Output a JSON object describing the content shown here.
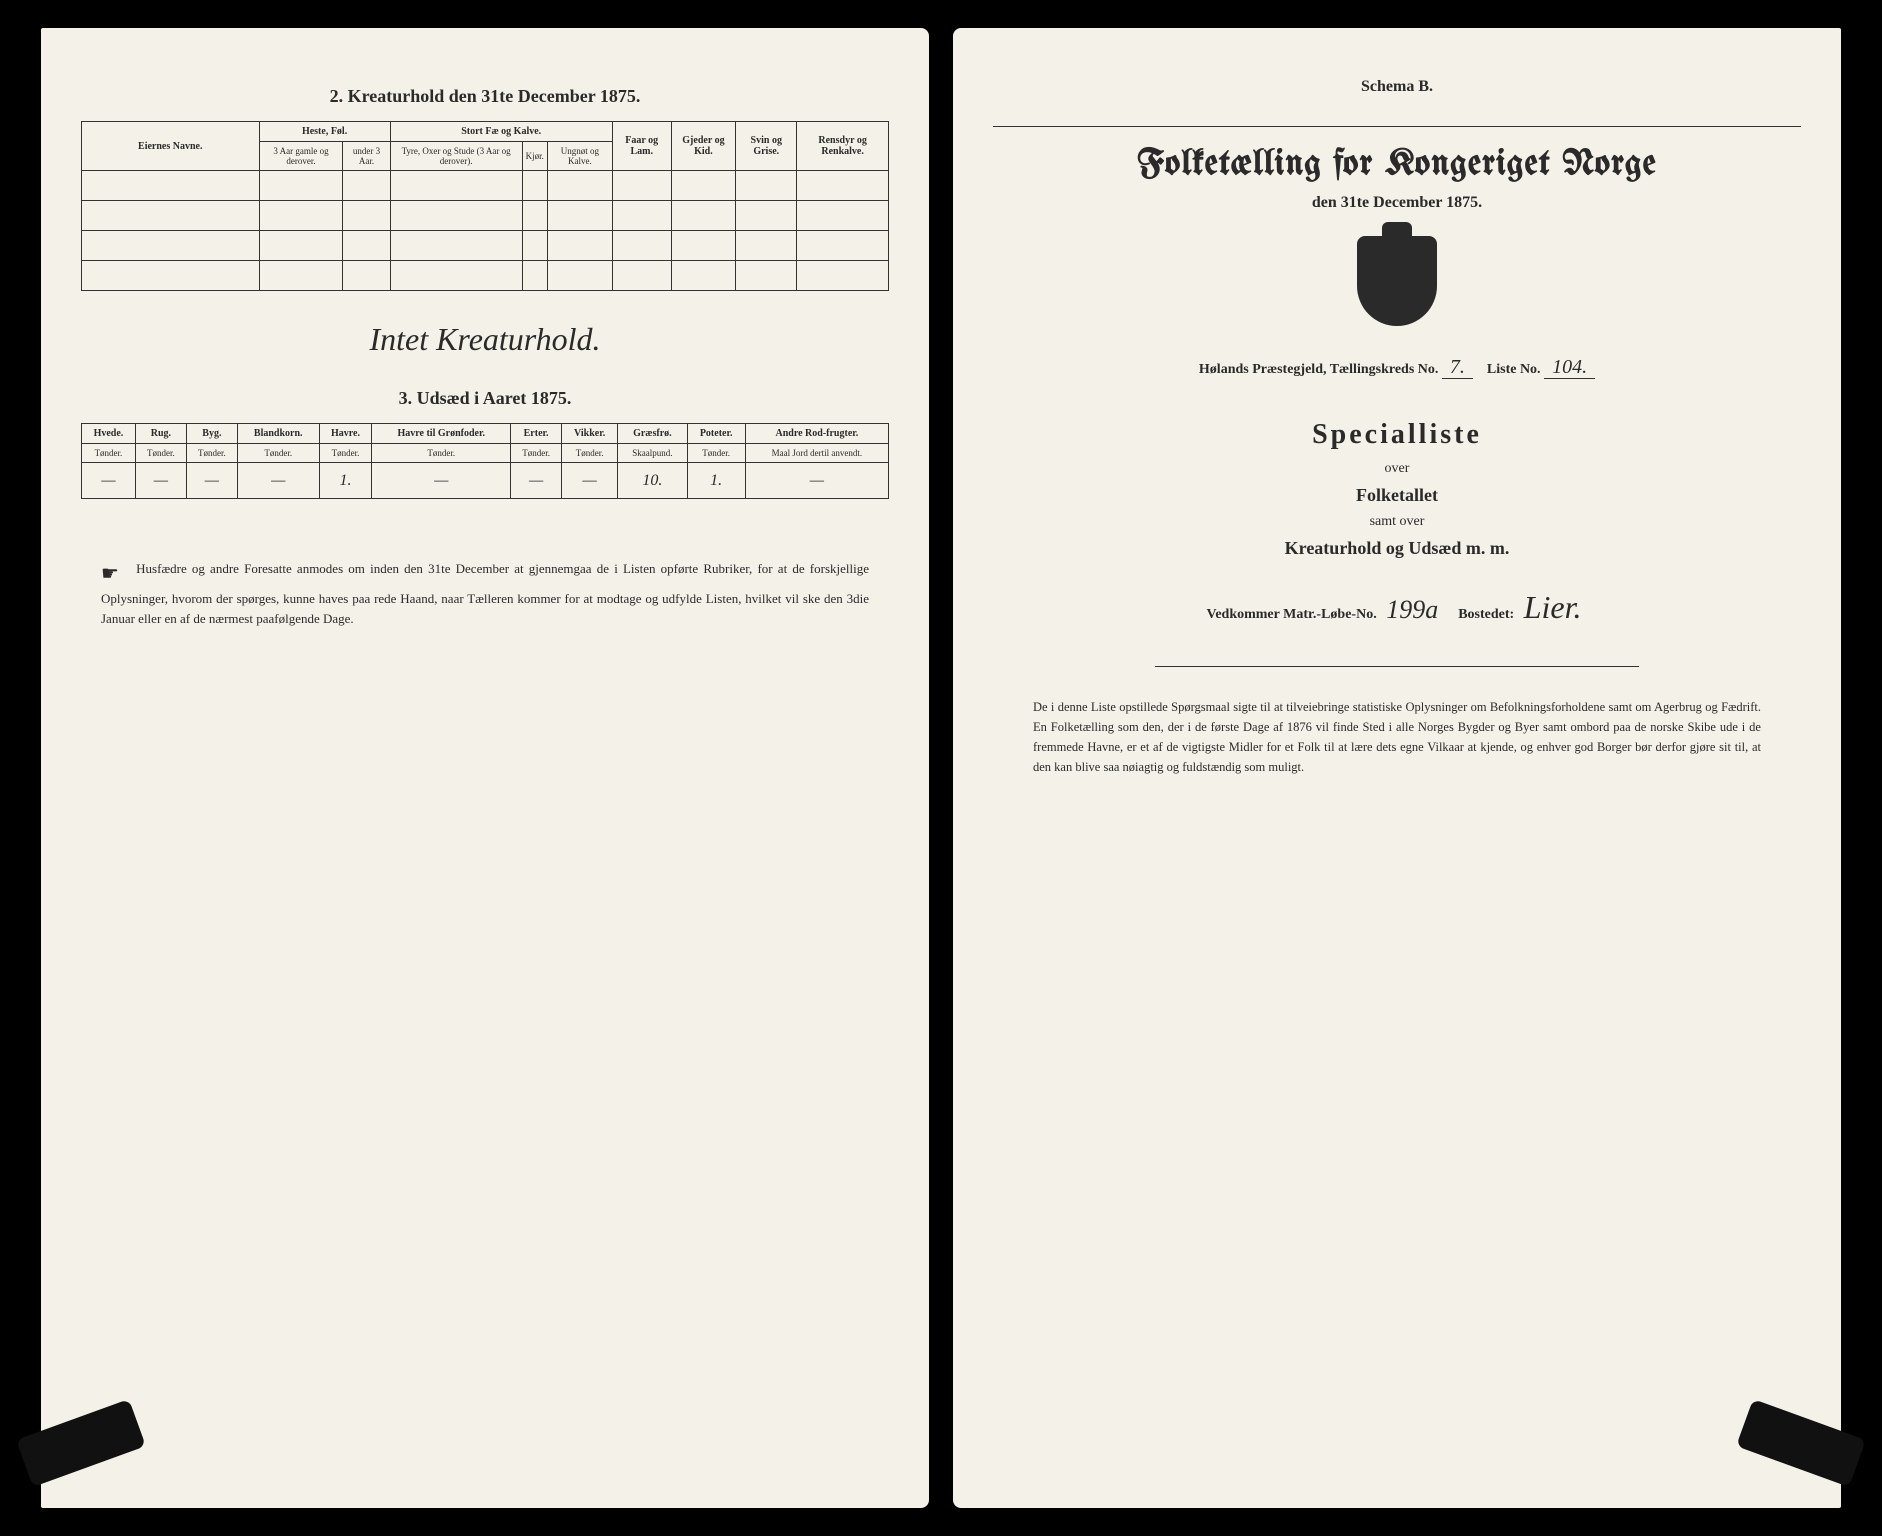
{
  "left": {
    "section2_title": "2. Kreaturhold den 31te December 1875.",
    "table2": {
      "col_owner": "Eiernes Navne.",
      "group_horse": "Heste, Føl.",
      "horse_a": "3 Aar gamle og derover.",
      "horse_b": "under 3 Aar.",
      "group_cattle": "Stort Fæ og Kalve.",
      "cattle_a": "Tyre, Oxer og Stude (3 Aar og derover).",
      "cattle_b": "Kjør.",
      "cattle_c": "Ungnøt og Kalve.",
      "col_sheep": "Faar og Lam.",
      "col_goat": "Gjeder og Kid.",
      "col_pig": "Svin og Grise.",
      "col_reindeer": "Rensdyr og Renkalve."
    },
    "cursive_note": "Intet Kreaturhold.",
    "section3_title": "3. Udsæd i Aaret 1875.",
    "table3": {
      "cols": [
        {
          "h": "Hvede.",
          "u": "Tønder."
        },
        {
          "h": "Rug.",
          "u": "Tønder."
        },
        {
          "h": "Byg.",
          "u": "Tønder."
        },
        {
          "h": "Blandkorn.",
          "u": "Tønder."
        },
        {
          "h": "Havre.",
          "u": "Tønder."
        },
        {
          "h": "Havre til Grønfoder.",
          "u": "Tønder."
        },
        {
          "h": "Erter.",
          "u": "Tønder."
        },
        {
          "h": "Vikker.",
          "u": "Tønder."
        },
        {
          "h": "Græsfrø.",
          "u": "Skaalpund."
        },
        {
          "h": "Poteter.",
          "u": "Tønder."
        },
        {
          "h": "Andre Rod-frugter.",
          "u": "Maal Jord dertil anvendt."
        }
      ],
      "row": [
        "—",
        "—",
        "—",
        "—",
        "1.",
        "—",
        "—",
        "—",
        "10.",
        "1.",
        "—"
      ]
    },
    "footer": "Husfædre og andre Foresatte anmodes om inden den 31te December at gjennemgaa de i Listen opførte Rubriker, for at de forskjellige Oplysninger, hvorom der spørges, kunne haves paa rede Haand, naar Tælleren kommer for at modtage og udfylde Listen, hvilket vil ske den 3die Januar eller en af de nærmest paafølgende Dage."
  },
  "right": {
    "schema": "Schema B.",
    "main_title": "Folketælling for Kongeriget Norge",
    "subtitle": "den 31te December 1875.",
    "parish_label": "Hølands Præstegjeld, Tællingskreds No.",
    "kreds_no": "7.",
    "liste_label": "Liste No.",
    "liste_no": "104.",
    "spec_title": "Specialliste",
    "spec_over": "over",
    "spec_folk": "Folketallet",
    "spec_samt": "samt over",
    "spec_kreat": "Kreaturhold og Udsæd m. m.",
    "matr_label": "Vedkommer Matr.-Løbe-No.",
    "matr_no": "199a",
    "bosted_label": "Bostedet:",
    "bosted": "Lier.",
    "footer": "De i denne Liste opstillede Spørgsmaal sigte til at tilveiebringe statistiske Oplysninger om Befolkningsforholdene samt om Agerbrug og Fædrift. En Folketælling som den, der i de første Dage af 1876 vil finde Sted i alle Norges Bygder og Byer samt ombord paa de norske Skibe ude i de fremmede Havne, er et af de vigtigste Midler for et Folk til at lære dets egne Vilkaar at kjende, og enhver god Borger bør derfor gjøre sit til, at den kan blive saa nøiagtig og fuldstændig som muligt."
  },
  "colors": {
    "paper": "#f4f1e8",
    "ink": "#2a2a2a",
    "bg": "#000000"
  }
}
